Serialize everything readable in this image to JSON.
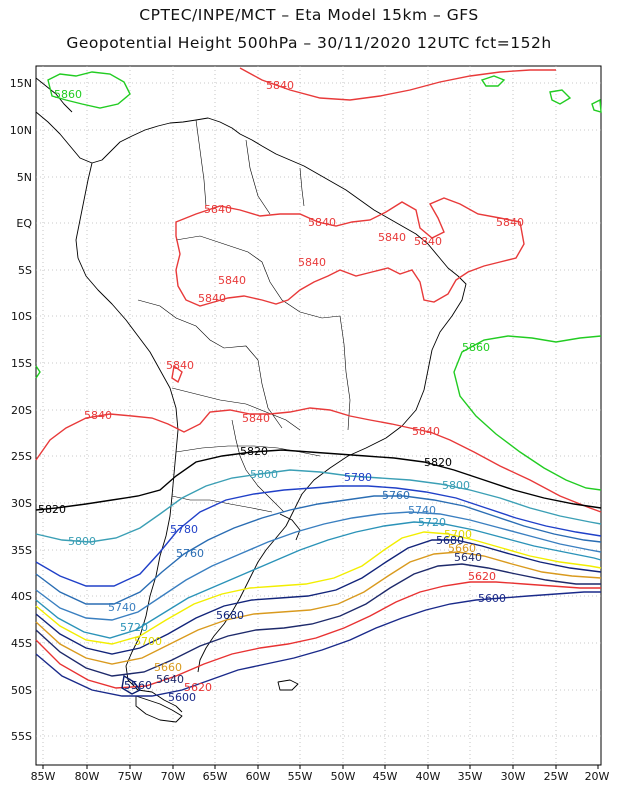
{
  "header": {
    "line1": "CPTEC/INPE/MCT –  Eta Model 15km – GFS",
    "line2": "Geopotential Height 500hPa – 30/11/2020 12UTC fct=152h"
  },
  "axes": {
    "lon_labels": [
      "85W",
      "80W",
      "75W",
      "70W",
      "65W",
      "60W",
      "55W",
      "50W",
      "45W",
      "40W",
      "35W",
      "30W",
      "25W",
      "20W"
    ],
    "lat_labels": [
      "15N",
      "10N",
      "5N",
      "EQ",
      "5S",
      "10S",
      "15S",
      "20S",
      "25S",
      "30S",
      "35S",
      "40S",
      "45S",
      "50S",
      "55S"
    ]
  },
  "colors": {
    "c5560": "#0b1d6e",
    "c5600": "#1a2a8a",
    "c5620": "#e83232",
    "c5640": "#1e2a6b",
    "c5660": "#d99a1e",
    "c5680": "#12247a",
    "c5700": "#f2ee00",
    "c5720": "#2b93b8",
    "c5740": "#3a7fc0",
    "c5760": "#2a6db3",
    "c5780": "#2040c8",
    "c5800": "#3b9fb5",
    "c5820": "#000000",
    "c5840": "#e83a3a",
    "c5860": "#22cc22",
    "coast": "#000000",
    "grid": "#b0b0b0"
  },
  "contour_labels": [
    {
      "text": "5860",
      "color": "#22cc22"
    },
    {
      "text": "5840",
      "color": "#e83a3a"
    },
    {
      "text": "5840",
      "color": "#e83a3a"
    },
    {
      "text": "5840",
      "color": "#e83a3a"
    },
    {
      "text": "5840",
      "color": "#e83a3a"
    },
    {
      "text": "5840",
      "color": "#e83a3a"
    },
    {
      "text": "5840",
      "color": "#e83a3a"
    },
    {
      "text": "5840",
      "color": "#e83a3a"
    },
    {
      "text": "5840",
      "color": "#e83a3a"
    },
    {
      "text": "5840",
      "color": "#e83a3a"
    },
    {
      "text": "5840",
      "color": "#e83a3a"
    },
    {
      "text": "5860",
      "color": "#22cc22"
    },
    {
      "text": "5840",
      "color": "#e83a3a"
    },
    {
      "text": "5840",
      "color": "#e83a3a"
    },
    {
      "text": "5840",
      "color": "#e83a3a"
    },
    {
      "text": "5820",
      "color": "#000000"
    },
    {
      "text": "5820",
      "color": "#000000"
    },
    {
      "text": "5820",
      "color": "#000000"
    },
    {
      "text": "5800",
      "color": "#3b9fb5"
    },
    {
      "text": "5800",
      "color": "#3b9fb5"
    },
    {
      "text": "5800",
      "color": "#3b9fb5"
    },
    {
      "text": "5780",
      "color": "#2040c8"
    },
    {
      "text": "5780",
      "color": "#2040c8"
    },
    {
      "text": "5760",
      "color": "#2a6db3"
    },
    {
      "text": "5760",
      "color": "#2a6db3"
    },
    {
      "text": "5740",
      "color": "#3a7fc0"
    },
    {
      "text": "5740",
      "color": "#3a7fc0"
    },
    {
      "text": "5720",
      "color": "#2b93b8"
    },
    {
      "text": "5720",
      "color": "#2b93b8"
    },
    {
      "text": "5700",
      "color": "#e0d800"
    },
    {
      "text": "5700",
      "color": "#e0d800"
    },
    {
      "text": "5680",
      "color": "#12247a"
    },
    {
      "text": "5680",
      "color": "#12247a"
    },
    {
      "text": "5660",
      "color": "#d99a1e"
    },
    {
      "text": "5660",
      "color": "#d99a1e"
    },
    {
      "text": "5640",
      "color": "#1e2a6b"
    },
    {
      "text": "5640",
      "color": "#1e2a6b"
    },
    {
      "text": "5620",
      "color": "#e83232"
    },
    {
      "text": "5620",
      "color": "#e83232"
    },
    {
      "text": "5600",
      "color": "#1a2a8a"
    },
    {
      "text": "5600",
      "color": "#1a2a8a"
    },
    {
      "text": "5560",
      "color": "#0b1d6e"
    }
  ]
}
